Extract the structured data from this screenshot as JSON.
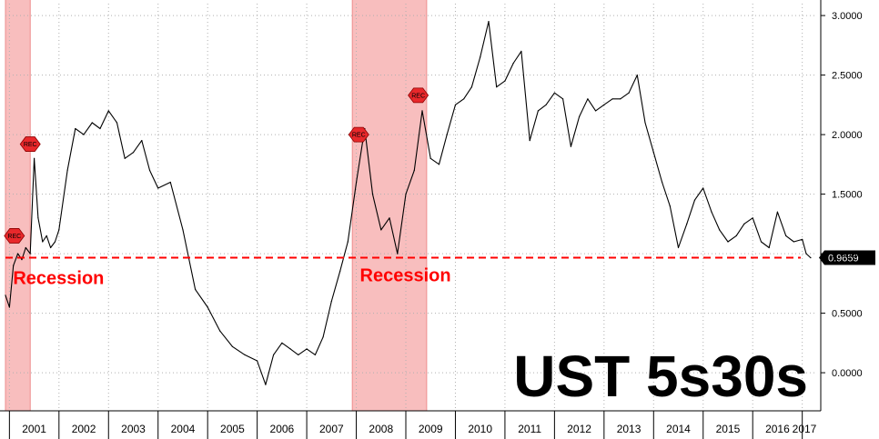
{
  "chart_data": {
    "type": "line",
    "title": "UST 5s30s",
    "xlabel": "",
    "ylabel": "",
    "xlim": [
      2000.92,
      2017.3
    ],
    "ylim": [
      -0.32,
      3.1
    ],
    "grid": true,
    "x_ticks": [
      "2001",
      "2002",
      "2003",
      "2004",
      "2005",
      "2006",
      "2007",
      "2008",
      "2009",
      "2010",
      "2011",
      "2012",
      "2013",
      "2014",
      "2015",
      "2016",
      "2017"
    ],
    "y_ticks": [
      "0.0000",
      "0.5000",
      "1.0000",
      "1.5000",
      "2.0000",
      "2.5000",
      "3.0000"
    ],
    "series": [
      {
        "color": "#000000",
        "x": [
          2000.92,
          2001.0,
          2001.08,
          2001.17,
          2001.25,
          2001.33,
          2001.42,
          2001.5,
          2001.58,
          2001.67,
          2001.75,
          2001.83,
          2001.92,
          2002.0,
          2002.17,
          2002.33,
          2002.5,
          2002.67,
          2002.83,
          2003.0,
          2003.17,
          2003.33,
          2003.5,
          2003.67,
          2003.83,
          2004.0,
          2004.25,
          2004.5,
          2004.75,
          2005.0,
          2005.25,
          2005.5,
          2005.75,
          2006.0,
          2006.17,
          2006.33,
          2006.5,
          2006.67,
          2006.83,
          2007.0,
          2007.17,
          2007.33,
          2007.5,
          2007.67,
          2007.83,
          2008.0,
          2008.17,
          2008.33,
          2008.5,
          2008.67,
          2008.83,
          2009.0,
          2009.17,
          2009.33,
          2009.5,
          2009.67,
          2009.83,
          2010.0,
          2010.17,
          2010.33,
          2010.5,
          2010.67,
          2010.83,
          2011.0,
          2011.17,
          2011.33,
          2011.5,
          2011.67,
          2011.83,
          2012.0,
          2012.17,
          2012.33,
          2012.5,
          2012.67,
          2012.83,
          2013.0,
          2013.17,
          2013.33,
          2013.5,
          2013.67,
          2013.83,
          2014.0,
          2014.17,
          2014.33,
          2014.5,
          2014.67,
          2014.83,
          2015.0,
          2015.17,
          2015.33,
          2015.5,
          2015.67,
          2015.83,
          2016.0,
          2016.17,
          2016.33,
          2016.5,
          2016.67,
          2016.83,
          2017.0,
          2017.08,
          2017.17
        ],
        "y": [
          0.65,
          0.55,
          0.9,
          1.0,
          0.95,
          1.05,
          1.0,
          1.8,
          1.3,
          1.1,
          1.15,
          1.05,
          1.1,
          1.2,
          1.7,
          2.05,
          2.0,
          2.1,
          2.05,
          2.2,
          2.1,
          1.8,
          1.85,
          1.95,
          1.7,
          1.55,
          1.6,
          1.2,
          0.7,
          0.55,
          0.35,
          0.22,
          0.15,
          0.1,
          -0.1,
          0.15,
          0.25,
          0.2,
          0.15,
          0.2,
          0.15,
          0.3,
          0.6,
          0.85,
          1.1,
          1.6,
          2.05,
          1.5,
          1.2,
          1.3,
          1.0,
          1.5,
          1.7,
          2.2,
          1.8,
          1.75,
          2.0,
          2.25,
          2.3,
          2.4,
          2.65,
          2.95,
          2.4,
          2.45,
          2.6,
          2.7,
          1.95,
          2.2,
          2.25,
          2.35,
          2.3,
          1.9,
          2.15,
          2.3,
          2.2,
          2.25,
          2.3,
          2.3,
          2.35,
          2.5,
          2.1,
          1.85,
          1.6,
          1.4,
          1.05,
          1.25,
          1.45,
          1.55,
          1.35,
          1.2,
          1.1,
          1.15,
          1.25,
          1.3,
          1.1,
          1.05,
          1.35,
          1.15,
          1.1,
          1.12,
          1.0,
          0.9659
        ]
      }
    ],
    "recession_bands": [
      {
        "start": 2000.92,
        "end": 2001.42
      },
      {
        "start": 2007.92,
        "end": 2009.42
      }
    ],
    "threshold_line": {
      "value": 0.9659,
      "color": "#ff0000",
      "style": "dashed"
    },
    "last_value_label": "0.9659",
    "annotations": [
      {
        "text": "Recession",
        "x": 2001.0,
        "y": 0.8
      },
      {
        "text": "Recession",
        "x": 2008.0,
        "y": 0.82
      }
    ],
    "rec_markers": [
      {
        "text": "REC",
        "x": 2001.1,
        "y": 1.15
      },
      {
        "text": "REC",
        "x": 2001.42,
        "y": 1.92
      },
      {
        "text": "REC",
        "x": 2008.05,
        "y": 2.0
      },
      {
        "text": "REC",
        "x": 2009.25,
        "y": 2.33
      }
    ]
  }
}
